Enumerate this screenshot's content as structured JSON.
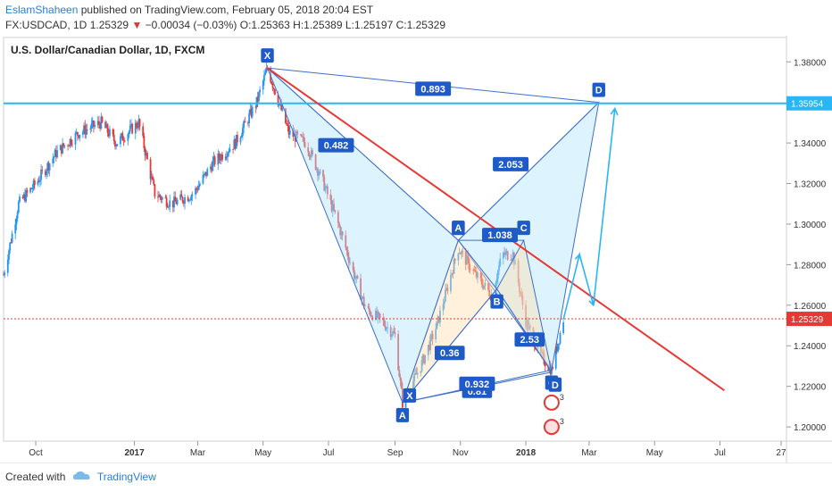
{
  "header": {
    "author": "EslamShaheen",
    "published_text": "published on TradingView.com, February 05, 2018 20:04 EST",
    "symbol": "FX:USDCAD, 1D",
    "last": "1.25329",
    "change": "−0.00034 (−0.03%)",
    "open": "O:1.25363",
    "high": "H:1.25389",
    "low": "L:1.25197",
    "close": "C:1.25329"
  },
  "footer": {
    "created_with": "Created with",
    "brand": "TradingView"
  },
  "chart_data": {
    "type": "candlestick",
    "title": "U.S. Dollar/Canadian Dollar, 1D, FXCM",
    "y_axis": {
      "ticks": [
        "1.20000",
        "1.22000",
        "1.24000",
        "1.26000",
        "1.28000",
        "1.30000",
        "1.32000",
        "1.34000",
        "1.36000",
        "1.38000"
      ],
      "range": [
        1.193,
        1.392
      ]
    },
    "x_axis": {
      "labels": [
        "Oct",
        "2017",
        "Mar",
        "May",
        "Jul",
        "Sep",
        "Nov",
        "2018",
        "Mar",
        "May",
        "Jul",
        "27"
      ]
    },
    "price_levels": {
      "horizontal": "1.35954",
      "current": "1.25329"
    },
    "path": [
      [
        "2016-09-01",
        1.275
      ],
      [
        "2016-09-15",
        1.31
      ],
      [
        "2016-10-01",
        1.32
      ],
      [
        "2016-10-20",
        1.335
      ],
      [
        "2016-11-10",
        1.345
      ],
      [
        "2016-12-01",
        1.35
      ],
      [
        "2016-12-15",
        1.34
      ],
      [
        "2017-01-05",
        1.35
      ],
      [
        "2017-01-20",
        1.315
      ],
      [
        "2017-02-05",
        1.31
      ],
      [
        "2017-02-25",
        1.315
      ],
      [
        "2017-03-15",
        1.33
      ],
      [
        "2017-04-05",
        1.34
      ],
      [
        "2017-04-25",
        1.36
      ],
      [
        "2017-05-05",
        1.377
      ],
      [
        "2017-05-25",
        1.345
      ],
      [
        "2017-06-10",
        1.34
      ],
      [
        "2017-06-25",
        1.322
      ],
      [
        "2017-07-10",
        1.3
      ],
      [
        "2017-07-25",
        1.275
      ],
      [
        "2017-08-05",
        1.258
      ],
      [
        "2017-08-20",
        1.252
      ],
      [
        "2017-09-01",
        1.245
      ],
      [
        "2017-09-08",
        1.212
      ],
      [
        "2017-09-25",
        1.23
      ],
      [
        "2017-10-10",
        1.25
      ],
      [
        "2017-10-30",
        1.288
      ],
      [
        "2017-11-15",
        1.275
      ],
      [
        "2017-11-30",
        1.265
      ],
      [
        "2017-12-10",
        1.285
      ],
      [
        "2017-12-20",
        1.285
      ],
      [
        "2018-01-01",
        1.252
      ],
      [
        "2018-01-15",
        1.235
      ],
      [
        "2018-01-25",
        1.228
      ],
      [
        "2018-02-05",
        1.253
      ]
    ],
    "harmonic_pattern_1": {
      "points": [
        {
          "label": "X",
          "date": "2017-05-05",
          "price": 1.377
        },
        {
          "label": "A",
          "date": "2017-09-08",
          "price": 1.212
        },
        {
          "label": "B",
          "date": "2017-10-30",
          "price": 1.292
        },
        {
          "label": "C",
          "date": "2018-01-25",
          "price": 1.228
        },
        {
          "label": "D",
          "date": "2018-03-10",
          "price": 1.36
        }
      ],
      "ratios": [
        "0.893",
        "0.482",
        "2.053"
      ]
    },
    "harmonic_pattern_2": {
      "points": [
        {
          "label": "X",
          "date": "2017-09-08",
          "price": 1.212
        },
        {
          "label": "A",
          "date": "2017-10-30",
          "price": 1.292
        },
        {
          "label": "B",
          "date": "2017-12-05",
          "price": 1.268
        },
        {
          "label": "C",
          "date": "2017-12-30",
          "price": 1.292
        },
        {
          "label": "D",
          "date": "2018-01-25",
          "price": 1.227
        }
      ],
      "ratios": [
        "1.038",
        "0.36",
        "2.53",
        "0.932",
        "0.81"
      ]
    },
    "trendline": {
      "from": {
        "date": "2017-05-05",
        "price": 1.377
      },
      "to": {
        "date": "2018-07-05",
        "price": 1.218
      }
    },
    "projection_arrows": [
      {
        "points": [
          [
            "2018-02-05",
            1.253
          ],
          [
            "2018-02-20",
            1.285
          ],
          [
            "2018-03-05",
            1.26
          ],
          [
            "2018-03-25",
            1.357
          ]
        ]
      }
    ],
    "event_icons": [
      "3",
      "3"
    ]
  }
}
